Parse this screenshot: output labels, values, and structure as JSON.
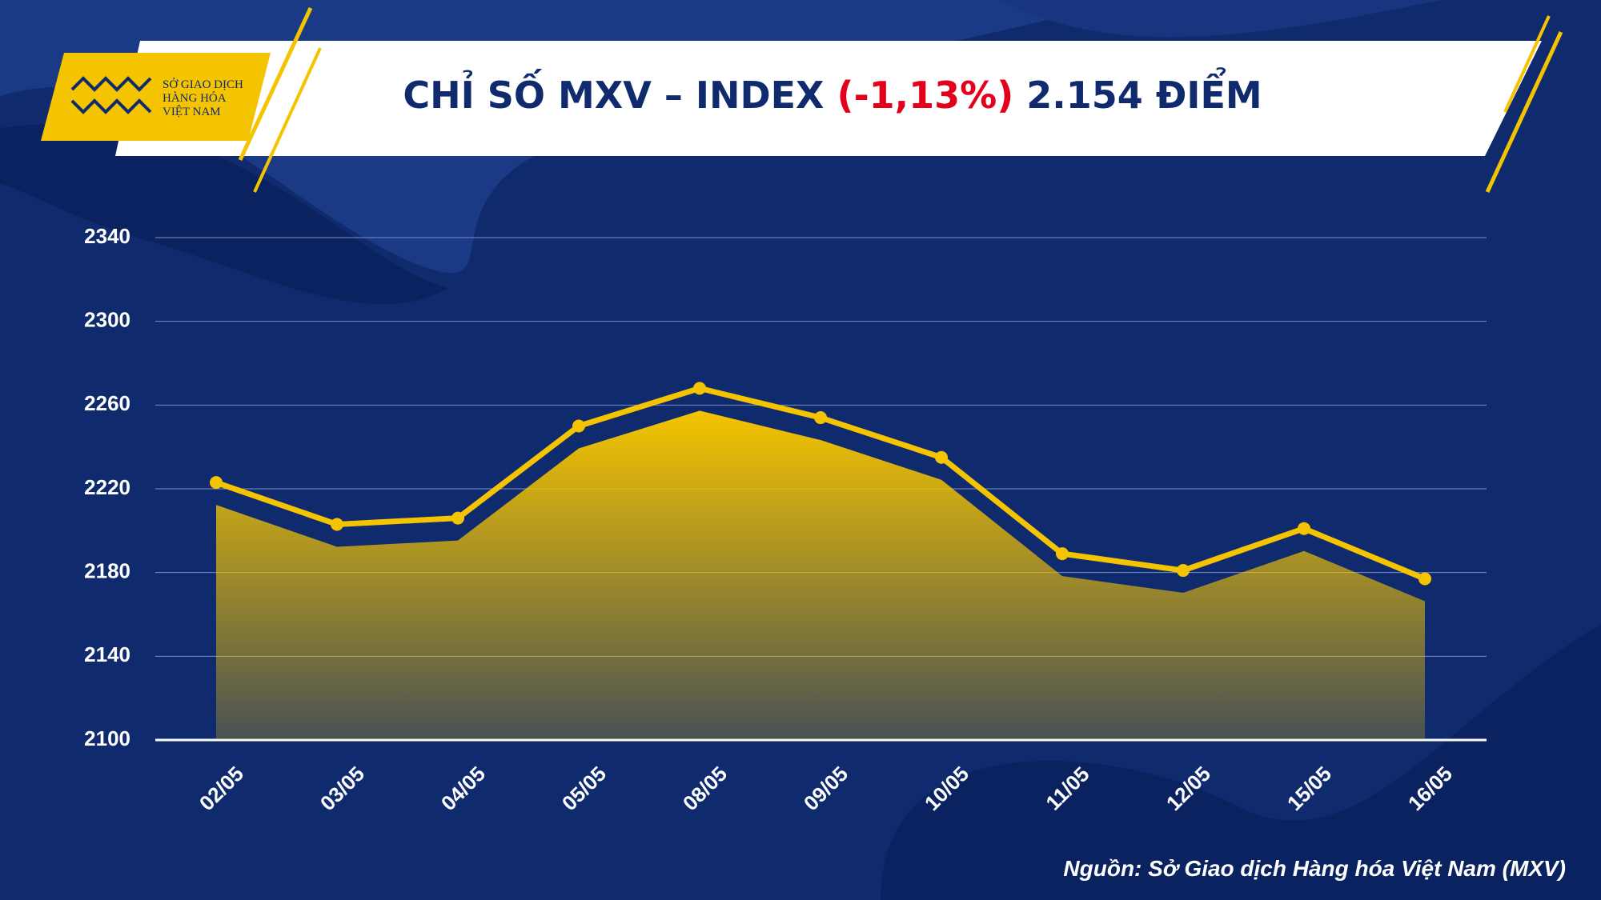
{
  "logo": {
    "lines": [
      "SỞ GIAO DỊCH",
      "HÀNG HÓA",
      "VIỆT NAM"
    ]
  },
  "chart_data": {
    "type": "line",
    "title": "CHỈ SỐ MXV – INDEX",
    "title_change": "(-1,13%)",
    "title_value": "2.154 ĐIỂM",
    "categories": [
      "02/05",
      "03/05",
      "04/05",
      "05/05",
      "08/05",
      "09/05",
      "10/05",
      "11/05",
      "12/05",
      "15/05",
      "16/05"
    ],
    "series": [
      {
        "color": "#f5c400",
        "values": [
          2223,
          2203,
          2206,
          2250,
          2268,
          2254,
          2235,
          2189,
          2181,
          2201,
          2177
        ]
      }
    ],
    "ylim": [
      2100,
      2340
    ],
    "yticks": [
      2100,
      2140,
      2180,
      2220,
      2260,
      2300,
      2340
    ],
    "grid": true
  },
  "source": "Nguồn: Sở Giao dịch Hàng hóa Việt Nam (MXV)"
}
